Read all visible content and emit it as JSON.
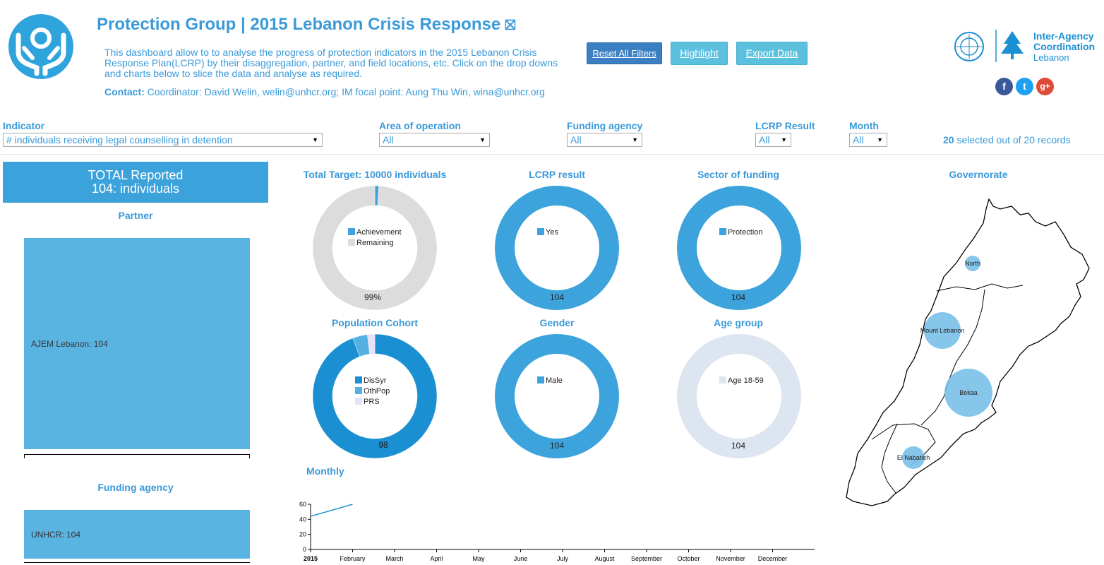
{
  "header": {
    "title": "Protection Group | 2015 Lebanon Crisis Response",
    "title_mark": "⛝",
    "description": "This dashboard allow to to analyse the progress of protection indicators in the 2015 Lebanon Crisis Response Plan(LCRP) by their disaggregation, partner, and field locations, etc. Click on the drop downs and charts below to slice the data and analyse as required.",
    "contact_label": "Contact:",
    "contact_text": " Coordinator: David Welin, welin@unhcr.org; IM focal point: Aung Thu Win, wina@unhcr.org"
  },
  "buttons": {
    "reset": "Reset All Filters",
    "highlight": "Highlight",
    "export": "Export Data"
  },
  "org": {
    "line1": "Inter-Agency",
    "line2": "Coordination",
    "line3": "Lebanon"
  },
  "social": {
    "facebook": "f",
    "twitter": "t",
    "google": "g+"
  },
  "filters": {
    "indicator": {
      "label": "Indicator",
      "value": "# individuals receiving legal counselling in detention"
    },
    "area": {
      "label": "Area of operation",
      "value": "All"
    },
    "funding": {
      "label": "Funding agency",
      "value": "All"
    },
    "lcrp": {
      "label": "LCRP Result",
      "value": "All"
    },
    "month": {
      "label": "Month",
      "value": "All"
    },
    "records_count": "20",
    "records_text": " selected out of 20 records"
  },
  "total": {
    "line1": "TOTAL Reported",
    "line2": "104: individuals"
  },
  "partner": {
    "title": "Partner",
    "label": "AJEM Lebanon: 104",
    "value": 104
  },
  "funding_agency": {
    "title": "Funding agency",
    "label": "UNHCR: 104",
    "value": 104
  },
  "donuts": {
    "target": {
      "title": "Total Target: 10000 individuals",
      "legend": [
        "Achievement",
        "Remaining"
      ],
      "value_label": "99%"
    },
    "lcrp": {
      "title": "LCRP result",
      "legend": [
        "Yes"
      ],
      "value_label": "104"
    },
    "sector": {
      "title": "Sector of funding",
      "legend": [
        "Protection"
      ],
      "value_label": "104"
    },
    "cohort": {
      "title": "Population Cohort",
      "legend": [
        "DisSyr",
        "OthPop",
        "PRS"
      ],
      "value_label": "98"
    },
    "gender": {
      "title": "Gender",
      "legend": [
        "Male"
      ],
      "value_label": "104"
    },
    "age": {
      "title": "Age group",
      "legend": [
        "Age 18-59"
      ],
      "value_label": "104"
    }
  },
  "monthly": {
    "title": "Monthly"
  },
  "governorate": {
    "title": "Governorate",
    "labels": [
      "North",
      "Mount Lebanon",
      "Bekaa",
      "El Nabatieh"
    ]
  },
  "colors": {
    "primary": "#3a9ad9",
    "donut_blue": "#3ca3dc",
    "cohort_blue": "#1a8fd1",
    "remaining_grey": "#dcdcdc",
    "age_pale": "#dde6f0",
    "bubble": "#78c0e8"
  },
  "chart_data": [
    {
      "type": "pie",
      "title": "Total Target: 10000 individuals",
      "categories": [
        "Achievement",
        "Remaining"
      ],
      "values": [
        104,
        9896
      ]
    },
    {
      "type": "pie",
      "title": "LCRP result",
      "categories": [
        "Yes"
      ],
      "values": [
        104
      ]
    },
    {
      "type": "pie",
      "title": "Sector of funding",
      "categories": [
        "Protection"
      ],
      "values": [
        104
      ]
    },
    {
      "type": "pie",
      "title": "Population Cohort",
      "categories": [
        "DisSyr",
        "OthPop",
        "PRS"
      ],
      "values": [
        98,
        4,
        2
      ]
    },
    {
      "type": "pie",
      "title": "Gender",
      "categories": [
        "Male"
      ],
      "values": [
        104
      ]
    },
    {
      "type": "pie",
      "title": "Age group",
      "categories": [
        "Age 18-59"
      ],
      "values": [
        104
      ]
    },
    {
      "type": "bar",
      "title": "Partner",
      "categories": [
        "AJEM Lebanon"
      ],
      "values": [
        104
      ]
    },
    {
      "type": "bar",
      "title": "Funding agency",
      "categories": [
        "UNHCR"
      ],
      "values": [
        104
      ]
    },
    {
      "type": "line",
      "title": "Monthly",
      "x": [
        "2015",
        "February"
      ],
      "values": [
        44,
        60
      ],
      "x_ticks": [
        "2015",
        "February",
        "March",
        "April",
        "May",
        "June",
        "July",
        "August",
        "September",
        "October",
        "November",
        "December"
      ],
      "y_ticks": [
        0,
        20,
        40,
        60
      ],
      "ylim": [
        0,
        60
      ]
    }
  ]
}
